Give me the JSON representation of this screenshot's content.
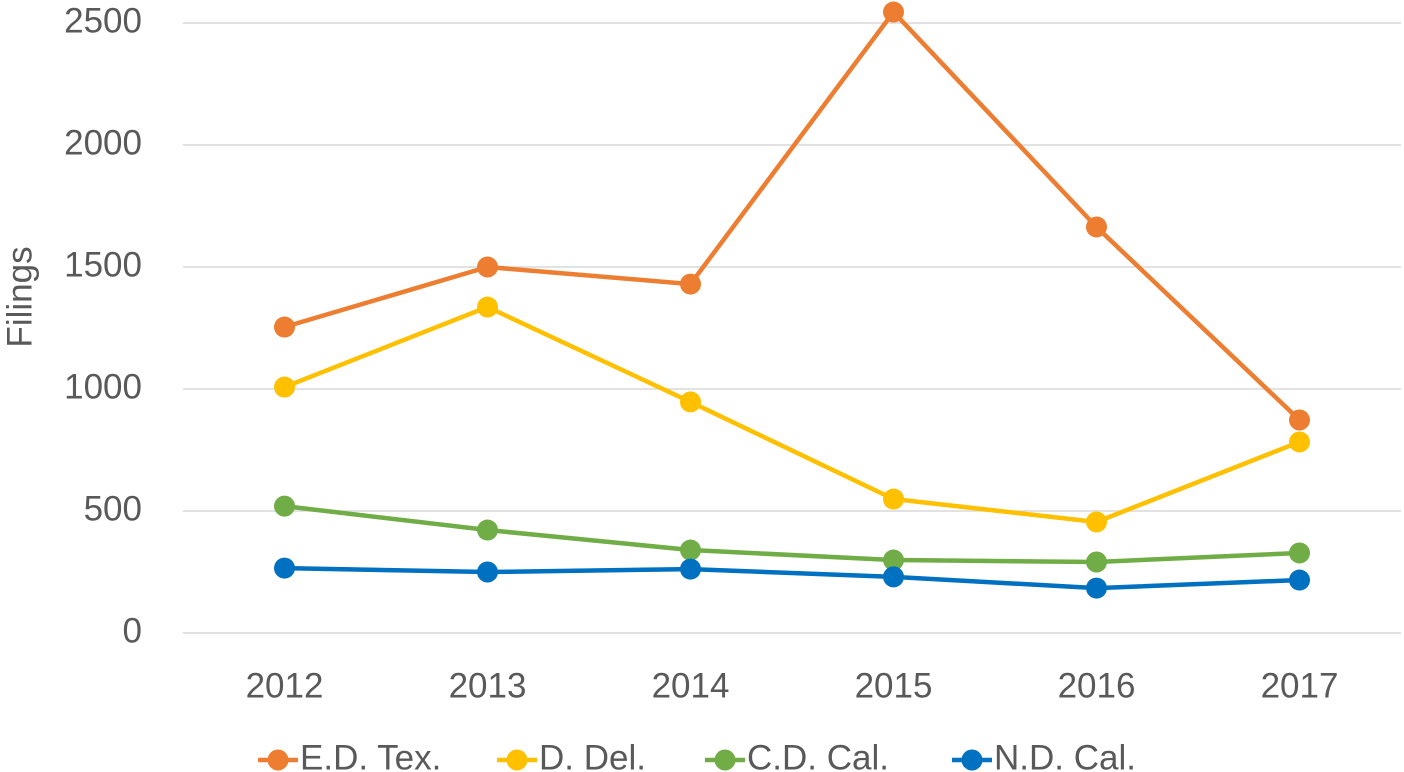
{
  "chart_data": {
    "type": "line",
    "y_label": "Filings",
    "categories": [
      "2012",
      "2013",
      "2014",
      "2015",
      "2016",
      "2017"
    ],
    "series": [
      {
        "name": "E.D. Tex.",
        "color": "#ED7D31",
        "values": [
          1254,
          1500,
          1430,
          2545,
          1664,
          873
        ]
      },
      {
        "name": "D. Del.",
        "color": "#FFC000",
        "values": [
          1008,
          1336,
          947,
          549,
          455,
          783
        ]
      },
      {
        "name": "C.D. Cal.",
        "color": "#70AD47",
        "values": [
          520,
          422,
          340,
          299,
          291,
          328
        ]
      },
      {
        "name": "N.D. Cal.",
        "color": "#0070C0",
        "values": [
          266,
          250,
          262,
          230,
          184,
          217
        ]
      }
    ],
    "ylim": [
      0,
      2500
    ],
    "yticks": [
      0,
      500,
      1000,
      1500,
      2000,
      2500
    ],
    "grid": true,
    "legend": "bottom"
  }
}
